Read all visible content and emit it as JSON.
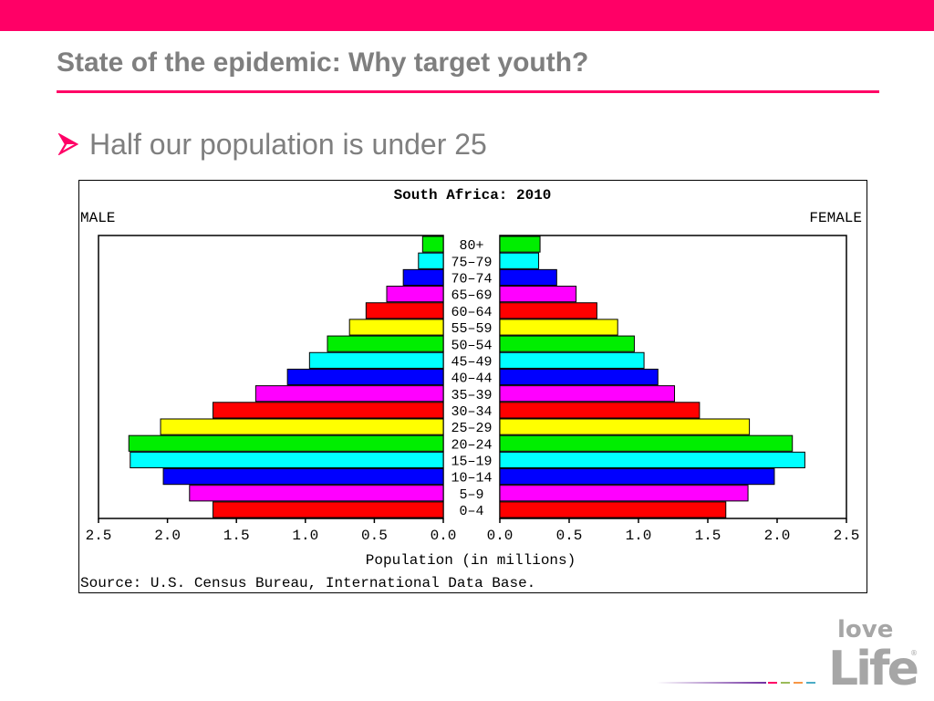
{
  "slide": {
    "title": "State of the epidemic: Why target youth?",
    "bullet": "Half our population is under 25",
    "accent_color": "#ff0066",
    "text_color": "#7f7f7f"
  },
  "logo": {
    "line1": "love",
    "line2": "Life",
    "registered": "®"
  },
  "chart_data": {
    "type": "bar",
    "subtype": "population-pyramid",
    "title": "South Africa: 2010",
    "left_label": "MALE",
    "right_label": "FEMALE",
    "xlabel": "Population (in millions)",
    "source": "Source: U.S. Census Bureau, International Data Base.",
    "xlim": [
      0,
      2.5
    ],
    "x_ticks": [
      "2.5",
      "2.0",
      "1.5",
      "1.0",
      "0.5",
      "0.0"
    ],
    "categories": [
      "80+",
      "75-79",
      "70-74",
      "65-69",
      "60-64",
      "55-59",
      "50-54",
      "45-49",
      "40-44",
      "35-39",
      "30-34",
      "25-29",
      "20-24",
      "15-19",
      "10-14",
      "5-9",
      "0-4"
    ],
    "colors": [
      "#00ee00",
      "#00ffff",
      "#0000ff",
      "#ff00ff",
      "#ff0000",
      "#ffff00",
      "#00ee00",
      "#00ffff",
      "#0000ff",
      "#ff00ff",
      "#ff0000",
      "#ffff00",
      "#00ee00",
      "#00ffff",
      "#0000ff",
      "#ff00ff",
      "#ff0000"
    ],
    "series": [
      {
        "name": "MALE",
        "values": [
          0.15,
          0.18,
          0.29,
          0.41,
          0.56,
          0.68,
          0.84,
          0.97,
          1.13,
          1.36,
          1.67,
          2.05,
          2.28,
          2.27,
          2.03,
          1.84,
          1.67
        ]
      },
      {
        "name": "FEMALE",
        "values": [
          0.29,
          0.28,
          0.41,
          0.55,
          0.7,
          0.85,
          0.97,
          1.04,
          1.14,
          1.26,
          1.44,
          1.8,
          2.11,
          2.2,
          1.98,
          1.79,
          1.63
        ]
      }
    ]
  }
}
